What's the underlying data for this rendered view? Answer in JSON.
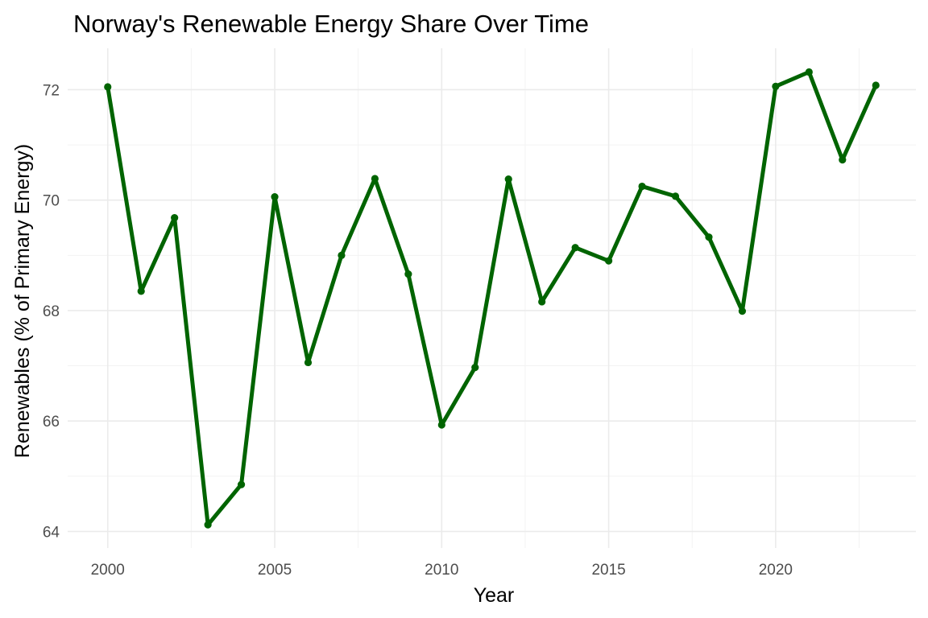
{
  "chart_data": {
    "type": "line",
    "title": "Norway's Renewable Energy Share Over Time",
    "xlabel": "Year",
    "ylabel": "Renewables (% of Primary Energy)",
    "xlim": [
      1998.8,
      2024.2
    ],
    "ylim": [
      63.7,
      72.75
    ],
    "x_ticks": [
      2000,
      2005,
      2010,
      2015,
      2020
    ],
    "x_tick_labels": [
      "2000",
      "2005",
      "2010",
      "2015",
      "2020"
    ],
    "x_minor_ticks": [
      2002.5,
      2007.5,
      2012.5,
      2017.5,
      2022.5
    ],
    "y_ticks": [
      64,
      66,
      68,
      70,
      72
    ],
    "y_tick_labels": [
      "64",
      "66",
      "68",
      "70",
      "72"
    ],
    "y_minor_ticks": [
      65,
      67,
      69,
      71
    ],
    "grid": true,
    "legend": "none",
    "color": "#006400",
    "series": [
      {
        "x": [
          2000,
          2001,
          2002,
          2003,
          2004,
          2005,
          2006,
          2007,
          2008,
          2009,
          2010,
          2011,
          2012,
          2013,
          2014,
          2015,
          2016,
          2017,
          2018,
          2019,
          2020,
          2021,
          2022,
          2023
        ],
        "values": [
          72.05,
          68.35,
          69.68,
          64.12,
          64.85,
          70.06,
          67.06,
          69.0,
          70.39,
          68.66,
          65.93,
          66.97,
          70.38,
          68.16,
          69.14,
          68.9,
          70.25,
          70.07,
          69.33,
          67.99,
          72.06,
          72.32,
          70.73,
          72.08
        ]
      }
    ]
  }
}
